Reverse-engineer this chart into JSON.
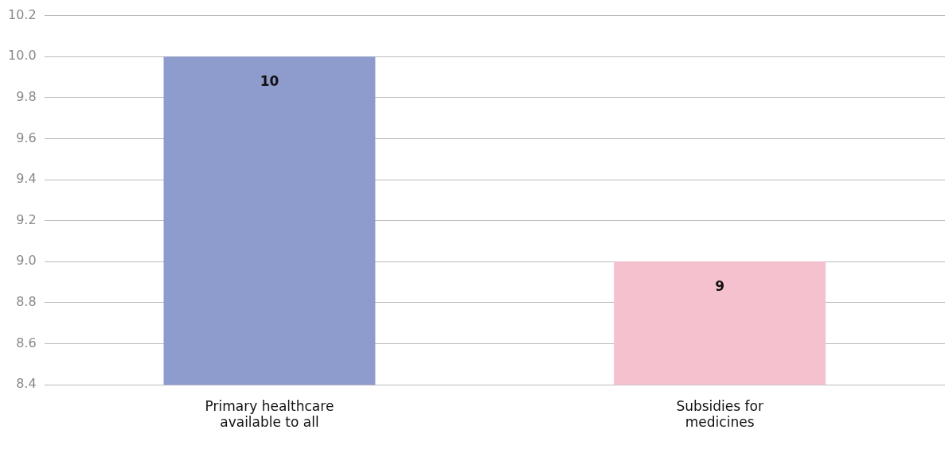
{
  "chart_data": {
    "type": "bar",
    "categories": [
      "Primary healthcare available to all",
      "Subsidies for medicines"
    ],
    "values": [
      10,
      9
    ],
    "colors": [
      "#8e9bcd",
      "#f6c1cf"
    ],
    "ylim": [
      8.4,
      10.2
    ],
    "yticks": [
      8.4,
      8.6,
      8.8,
      {
        "value": 9,
        "label": "9.0"
      },
      9.2,
      9.4,
      9.6,
      9.8,
      {
        "value": 10,
        "label": "10.0"
      },
      10.2
    ],
    "grid": "y",
    "legend": false,
    "data_labels": true
  }
}
